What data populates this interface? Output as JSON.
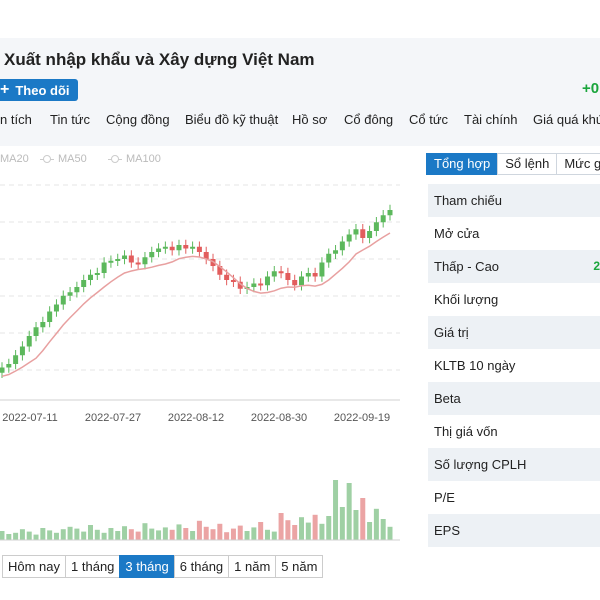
{
  "header": {
    "company_name": "Xuất nhập khẩu và Xây dựng Việt Nam",
    "follow_button": "Theo dõi",
    "change_partial": "+0"
  },
  "nav": {
    "items": [
      "n tích",
      "Tin tức",
      "Cộng đồng",
      "Biểu đồ kỹ thuật",
      "Hồ sơ",
      "Cổ đông",
      "Cổ tức",
      "Tài chính",
      "Giá quá khứ"
    ]
  },
  "chart": {
    "ma_legend": [
      "MA20",
      "MA50",
      "MA100"
    ],
    "x_dates": [
      "2022-07-11",
      "2022-07-27",
      "2022-08-12",
      "2022-08-30",
      "2022-09-19"
    ],
    "periods": [
      "Hôm nay",
      "1 tháng",
      "3 tháng",
      "6 tháng",
      "1 năm",
      "5 năm"
    ],
    "active_period": "3 tháng",
    "colors": {
      "up": "#5cb85c",
      "down": "#e25d5d",
      "ma": "#e8a0a0",
      "vol_up": "#9fd0a4",
      "vol_down": "#eba4a4"
    }
  },
  "chart_data": {
    "type": "candlestick",
    "x_tick_labels": [
      "2022-07-11",
      "2022-07-27",
      "2022-08-12",
      "2022-08-30",
      "2022-09-19"
    ],
    "ma_series_names": [
      "MA20",
      "MA50",
      "MA100"
    ],
    "trend_levels": [
      0.1,
      0.12,
      0.17,
      0.22,
      0.28,
      0.33,
      0.36,
      0.42,
      0.46,
      0.51,
      0.53,
      0.56,
      0.6,
      0.63,
      0.64,
      0.7,
      0.71,
      0.72,
      0.74,
      0.7,
      0.69,
      0.73,
      0.76,
      0.78,
      0.79,
      0.77,
      0.8,
      0.78,
      0.79,
      0.76,
      0.72,
      0.68,
      0.63,
      0.6,
      0.59,
      0.55,
      0.56,
      0.58,
      0.57,
      0.62,
      0.65,
      0.64,
      0.6,
      0.57,
      0.62,
      0.64,
      0.62,
      0.7,
      0.75,
      0.77,
      0.82,
      0.86,
      0.89,
      0.84,
      0.88,
      0.93,
      0.97,
      1.0
    ],
    "volume_levels": [
      0.15,
      0.1,
      0.12,
      0.18,
      0.14,
      0.09,
      0.2,
      0.16,
      0.12,
      0.18,
      0.22,
      0.19,
      0.14,
      0.25,
      0.17,
      0.12,
      0.2,
      0.15,
      0.23,
      0.18,
      0.14,
      0.28,
      0.19,
      0.16,
      0.21,
      0.17,
      0.26,
      0.2,
      0.15,
      0.32,
      0.22,
      0.18,
      0.27,
      0.13,
      0.19,
      0.24,
      0.15,
      0.21,
      0.3,
      0.17,
      0.14,
      0.45,
      0.33,
      0.25,
      0.38,
      0.29,
      0.42,
      0.27,
      0.4,
      1.0,
      0.55,
      0.95,
      0.5,
      0.7,
      0.3,
      0.52,
      0.35,
      0.22
    ]
  },
  "panel": {
    "tabs": [
      "Tổng hợp",
      "Sổ lệnh",
      "Mức gi"
    ],
    "active_tab": "Tổng hợp",
    "rows": [
      "Tham chiếu",
      "Mở cửa",
      "Thấp - Cao",
      "Khối lượng",
      "Giá trị",
      "KLTB 10 ngày",
      "Beta",
      "Thị giá vốn",
      "Số lượng CPLH",
      "P/E",
      "EPS"
    ],
    "low_high_mark": "2"
  }
}
